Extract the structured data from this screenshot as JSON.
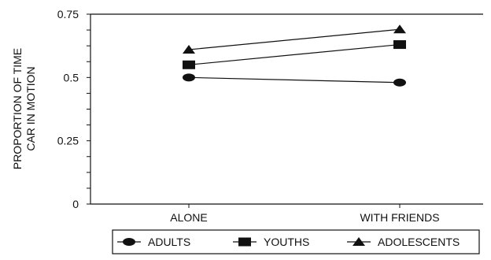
{
  "chart_data": {
    "type": "line",
    "title": "",
    "ylabel": [
      "PROPORTION OF TIME",
      "CAR IN MOTION"
    ],
    "xlabel": "",
    "categories": [
      "ALONE",
      "WITH FRIENDS"
    ],
    "ylim": [
      0,
      0.75
    ],
    "yticks": [
      "0",
      "0.25",
      "0.5",
      "0.75"
    ],
    "grid": false,
    "legend_position": "bottom",
    "series": [
      {
        "name": "ADULTS",
        "marker": "circle",
        "values": [
          0.5,
          0.48
        ]
      },
      {
        "name": "YOUTHS",
        "marker": "square",
        "values": [
          0.55,
          0.63
        ]
      },
      {
        "name": "ADOLESCENTS",
        "marker": "triangle",
        "values": [
          0.61,
          0.69
        ]
      }
    ],
    "colors": {
      "line": "#111111",
      "marker": "#111111",
      "axis": "#111111"
    }
  }
}
